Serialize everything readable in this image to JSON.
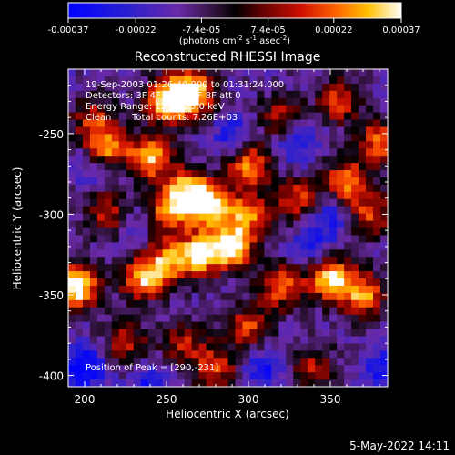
{
  "chart_data": {
    "type": "heatmap",
    "title": "Reconstructed RHESSI Image",
    "xlabel": "Heliocentric X (arcsec)",
    "ylabel": "Heliocentric Y (arcsec)",
    "xlim": [
      190,
      385
    ],
    "ylim": [
      -407,
      -210
    ],
    "x_ticks": [
      200,
      250,
      300,
      350
    ],
    "y_ticks": [
      -250,
      -300,
      -350,
      -400
    ],
    "colorbar": {
      "ticks": [
        "-0.00037",
        "-0.00022",
        "-7.4e-05",
        "7.4e-05",
        "0.00022",
        "0.00037"
      ],
      "tick_values": [
        -0.00037,
        -0.00022,
        -7.4e-05,
        7.4e-05,
        0.00022,
        0.00037
      ],
      "range": [
        -0.00037,
        0.00037
      ],
      "units_prefix": "(photons cm",
      "units_exp1": "-2",
      "units_mid1": " s",
      "units_exp2": "-1",
      "units_mid2": " asec",
      "units_exp3": "-2",
      "units_suffix": ")",
      "colormap": "blue-black-red-yellow-white"
    },
    "annotations": {
      "time_range": "19-Sep-2003 01:26:40.000 to 01:31:24.000",
      "detectors": "Detectors: 3F 4F 5F 6F 7F 8F att 0",
      "energy_range": "Energy Range: 12.0 - 25.0 keV",
      "method": "Clean",
      "total_counts": "Total counts: 7.26E+03",
      "peak_position": "Position of Peak = [290,-231]"
    },
    "grid": false
  },
  "footer": {
    "date": "5-May-2022 14:11"
  },
  "colors": {
    "background": "#000000",
    "text": "#ffffff",
    "field": "#5a2aa0"
  }
}
